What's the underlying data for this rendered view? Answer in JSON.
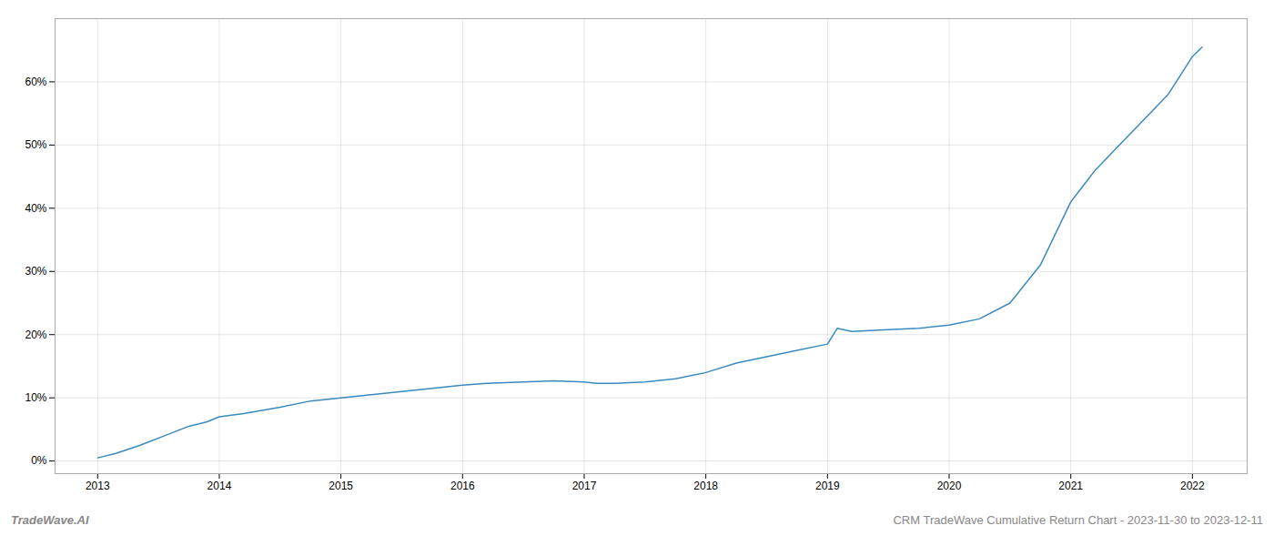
{
  "chart_data": {
    "type": "line",
    "x": [
      2013.0,
      2013.15,
      2013.35,
      2013.55,
      2013.75,
      2013.9,
      2014.0,
      2014.2,
      2014.5,
      2014.75,
      2015.0,
      2015.25,
      2015.5,
      2015.75,
      2016.0,
      2016.2,
      2016.5,
      2016.75,
      2017.0,
      2017.1,
      2017.25,
      2017.5,
      2017.75,
      2018.0,
      2018.25,
      2018.5,
      2018.75,
      2019.0,
      2019.08,
      2019.2,
      2019.5,
      2019.75,
      2020.0,
      2020.25,
      2020.5,
      2020.75,
      2021.0,
      2021.1,
      2021.2,
      2021.35,
      2021.5,
      2021.65,
      2021.8,
      2022.0,
      2022.08
    ],
    "values": [
      0.5,
      1.2,
      2.5,
      4.0,
      5.5,
      6.2,
      7.0,
      7.5,
      8.5,
      9.5,
      10.0,
      10.5,
      11.0,
      11.5,
      12.0,
      12.3,
      12.5,
      12.7,
      12.5,
      12.3,
      12.3,
      12.5,
      13.0,
      14.0,
      15.5,
      16.5,
      17.5,
      18.5,
      21.0,
      20.5,
      20.8,
      21.0,
      21.5,
      22.5,
      25.0,
      31.0,
      41.0,
      43.5,
      46.0,
      49.0,
      52.0,
      55.0,
      58.0,
      64.0,
      65.5
    ],
    "color": "#3a8abf",
    "xlim": [
      2012.65,
      2022.45
    ],
    "xticks": [
      2013,
      2014,
      2015,
      2016,
      2017,
      2018,
      2019,
      2020,
      2021,
      2022
    ],
    "ylim": [
      -2,
      70
    ],
    "yticks": [
      {
        "value": 0,
        "label": "0%"
      },
      {
        "value": 10,
        "label": "10%"
      },
      {
        "value": 20,
        "label": "20%"
      },
      {
        "value": 30,
        "label": "30%"
      },
      {
        "value": 40,
        "label": "40%"
      },
      {
        "value": 50,
        "label": "50%"
      },
      {
        "value": 60,
        "label": "60%"
      }
    ],
    "grid": true,
    "annotations": [
      "TradeWave.AI",
      "CRM TradeWave Cumulative Return Chart - 2023-11-30 to 2023-12-11"
    ]
  }
}
